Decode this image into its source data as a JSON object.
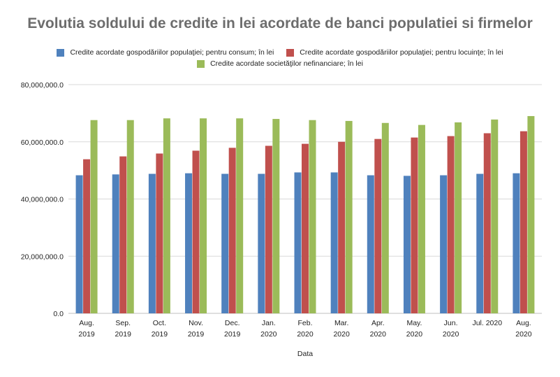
{
  "chart_data": {
    "type": "bar",
    "title": "Evolutia soldului de credite in lei acordate de banci populatiei si firmelor",
    "xlabel": "Data",
    "ylabel": "",
    "ylim": [
      0,
      80000000
    ],
    "yticks": [
      {
        "value": 0,
        "label": "0.0"
      },
      {
        "value": 20000000,
        "label": "20,000,000.0"
      },
      {
        "value": 40000000,
        "label": "40,000,000.0"
      },
      {
        "value": 60000000,
        "label": "60,000,000.0"
      },
      {
        "value": 80000000,
        "label": "80,000,000.0"
      }
    ],
    "grid": true,
    "legend_position": "top",
    "categories": [
      [
        "Aug.",
        "2019"
      ],
      [
        "Sep.",
        "2019"
      ],
      [
        "Oct.",
        "2019"
      ],
      [
        "Nov.",
        "2019"
      ],
      [
        "Dec.",
        "2019"
      ],
      [
        "Jan.",
        "2020"
      ],
      [
        "Feb.",
        "2020"
      ],
      [
        "Mar.",
        "2020"
      ],
      [
        "Apr.",
        "2020"
      ],
      [
        "May.",
        "2020"
      ],
      [
        "Jun.",
        "2020"
      ],
      [
        "Jul. 2020"
      ],
      [
        "Aug.",
        "2020"
      ]
    ],
    "series": [
      {
        "name": "Credite acordate gospodăriilor populaţiei; pentru consum; în lei",
        "color": "#4f81bd",
        "values": [
          48300000,
          48600000,
          48800000,
          49000000,
          48800000,
          48800000,
          49300000,
          49300000,
          48300000,
          48100000,
          48300000,
          48800000,
          49000000
        ]
      },
      {
        "name": "Credite acordate gospodăriilor populaţiei; pentru locuinţe; în lei",
        "color": "#c0504d",
        "values": [
          53900000,
          54900000,
          55900000,
          56900000,
          57900000,
          58600000,
          59300000,
          60000000,
          61000000,
          61500000,
          62000000,
          63000000,
          63700000
        ]
      },
      {
        "name": "Credite acordate societăţilor nefinanciare; în lei",
        "color": "#9bbb59",
        "values": [
          67600000,
          67600000,
          68200000,
          68200000,
          68200000,
          68000000,
          67600000,
          67300000,
          66600000,
          65900000,
          66800000,
          67800000,
          69000000
        ]
      }
    ]
  }
}
